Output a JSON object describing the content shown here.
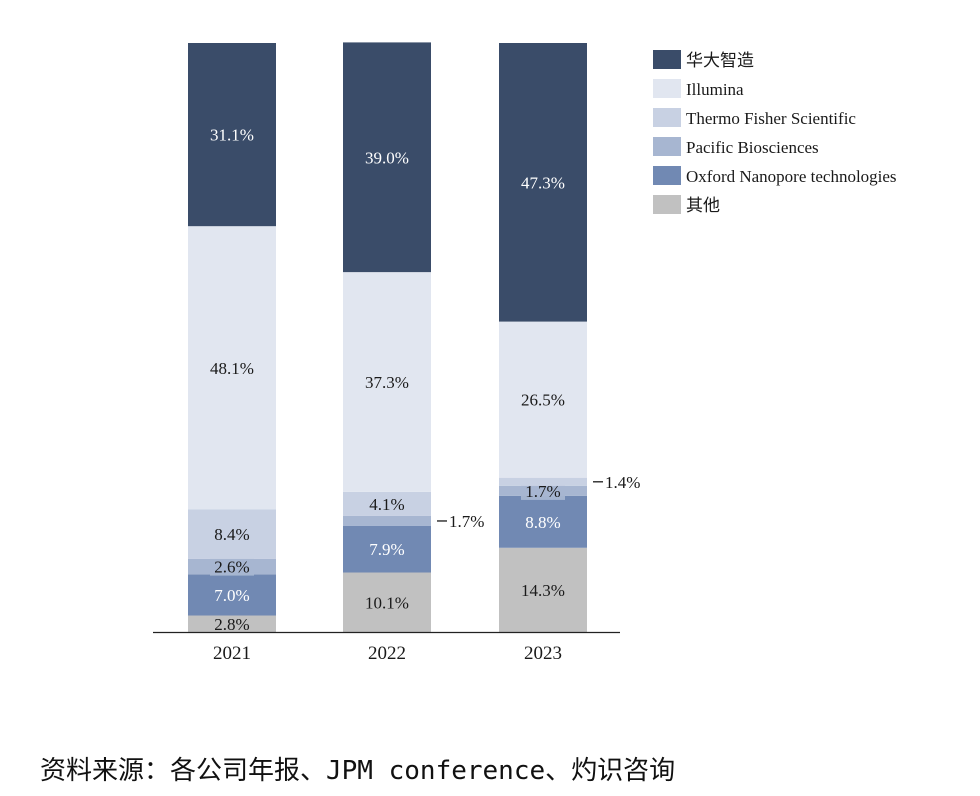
{
  "chart_data": {
    "type": "bar",
    "stacked": true,
    "unit": "%",
    "categories": [
      "2021",
      "2022",
      "2023"
    ],
    "series": [
      {
        "name": "其他",
        "color": "#c1c1c1",
        "values": [
          2.8,
          10.1,
          14.3
        ],
        "labels": [
          "2.8%",
          "10.1%",
          "14.3%"
        ]
      },
      {
        "name": "Oxford Nanopore technologies",
        "color": "#7189b3",
        "values": [
          7.0,
          7.9,
          8.8
        ],
        "labels": [
          "7.0%",
          "7.9%",
          "8.8%"
        ]
      },
      {
        "name": "Pacific Biosciences",
        "color": "#a7b6d1",
        "values": [
          2.6,
          1.7,
          1.7
        ],
        "labels": [
          "2.6%",
          "1.7%",
          "1.7%"
        ]
      },
      {
        "name": "Thermo Fisher Scientific",
        "color": "#c8d1e3",
        "values": [
          8.4,
          4.1,
          1.4
        ],
        "labels": [
          "8.4%",
          "4.1%",
          "1.4%"
        ]
      },
      {
        "name": "Illumina",
        "color": "#e1e6f0",
        "values": [
          48.1,
          37.3,
          26.5
        ],
        "labels": [
          "48.1%",
          "37.3%",
          "26.5%"
        ]
      },
      {
        "name": "华大智造",
        "color": "#3a4c69",
        "values": [
          31.1,
          39.0,
          47.3
        ],
        "labels": [
          "31.1%",
          "39.0%",
          "47.3%"
        ]
      }
    ],
    "legend_order": [
      "华大智造",
      "Illumina",
      "Thermo Fisher Scientific",
      "Pacific Biosciences",
      "Oxford Nanopore technologies",
      "其他"
    ],
    "legend_position": "right",
    "ylim": [
      0,
      100
    ],
    "grid": false
  },
  "footer": {
    "source": "资料来源：各公司年报、JPM conference、灼识咨询"
  }
}
